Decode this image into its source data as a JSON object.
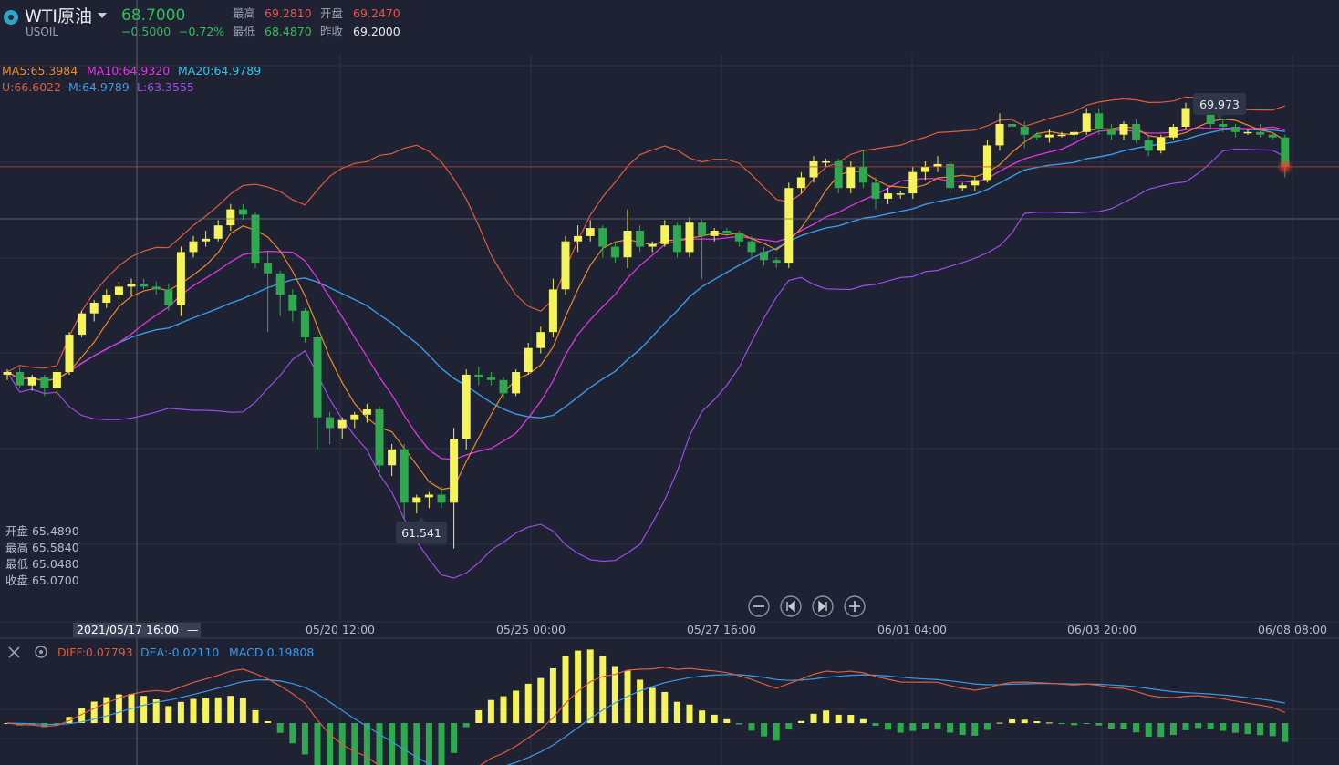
{
  "header": {
    "symbol_name": "WTI原油",
    "symbol_code": "USOIL",
    "last_price": "68.7000",
    "change": "−0.5000",
    "change_pct": "−0.72%",
    "high_label": "最高",
    "high_value": "69.2810",
    "open_label": "开盘",
    "open_value": "69.2470",
    "low_label": "最低",
    "low_value": "68.4870",
    "prev_close_label": "昨收",
    "prev_close_value": "69.2000"
  },
  "indicators": {
    "ma5": "MA5:65.3984",
    "ma10": "MA10:64.9320",
    "ma20": "MA20:64.9789",
    "boll_u": "U:66.6022",
    "boll_m": "M:64.9789",
    "boll_l": "L:63.3555"
  },
  "ohlc_panel": {
    "open": "开盘 65.4890",
    "high": "最高 65.5840",
    "low": "最低 65.0480",
    "close": "收盘 65.0700"
  },
  "crosshair_time": "2021/05/17 16:00",
  "macd_labels": {
    "diff": "DIFF:0.07793",
    "dea": "DEA:-0.02110",
    "macd": "MACD:0.19808"
  },
  "colors": {
    "up": "#f4f45a",
    "down": "#2fa84f",
    "ma5": "#f08a24",
    "ma10": "#e036e0",
    "ma20": "#3a9ae8",
    "boll_band": "#e25b3c",
    "boll_lower": "#9a4ee8",
    "diff": "#e25b3c",
    "dea": "#3a9ae8",
    "bg": "#1e2232"
  },
  "chart_data": {
    "type": "candlestick",
    "x_ticks": [
      "05/20 12:00",
      "05/25 00:00",
      "05/27 16:00",
      "06/01 04:00",
      "06/03 20:00",
      "06/08 08:00"
    ],
    "price_range": [
      60.2,
      70.8
    ],
    "annotations": {
      "max_label": "69.973",
      "min_label": "61.541",
      "max": 69.973,
      "min": 61.541
    },
    "candles": [
      [
        64.8,
        64.9,
        64.7,
        64.85
      ],
      [
        64.85,
        64.95,
        64.55,
        64.6
      ],
      [
        64.6,
        64.8,
        64.5,
        64.75
      ],
      [
        64.75,
        64.8,
        64.4,
        64.55
      ],
      [
        64.55,
        64.9,
        64.4,
        64.85
      ],
      [
        64.85,
        65.6,
        64.8,
        65.55
      ],
      [
        65.55,
        66.0,
        65.5,
        65.95
      ],
      [
        65.95,
        66.2,
        65.8,
        66.15
      ],
      [
        66.15,
        66.4,
        66.05,
        66.3
      ],
      [
        66.3,
        66.55,
        66.2,
        66.45
      ],
      [
        66.45,
        66.6,
        66.3,
        66.5
      ],
      [
        66.5,
        66.6,
        66.4,
        66.45
      ],
      [
        66.45,
        66.55,
        66.3,
        66.4
      ],
      [
        66.4,
        66.5,
        66.0,
        66.1
      ],
      [
        66.1,
        67.2,
        65.9,
        67.1
      ],
      [
        67.1,
        67.4,
        67.0,
        67.3
      ],
      [
        67.3,
        67.5,
        67.2,
        67.35
      ],
      [
        67.35,
        67.7,
        67.3,
        67.6
      ],
      [
        67.6,
        68.0,
        67.5,
        67.9
      ],
      [
        67.9,
        68.0,
        67.7,
        67.8
      ],
      [
        67.8,
        67.85,
        66.8,
        66.9
      ],
      [
        66.9,
        67.1,
        65.6,
        66.7
      ],
      [
        66.7,
        66.75,
        65.9,
        66.3
      ],
      [
        66.3,
        66.4,
        65.8,
        66.0
      ],
      [
        66.0,
        66.05,
        65.4,
        65.5
      ],
      [
        65.5,
        65.55,
        63.4,
        64.0
      ],
      [
        64.0,
        64.1,
        63.5,
        63.8
      ],
      [
        63.8,
        64.0,
        63.6,
        63.95
      ],
      [
        63.95,
        64.1,
        63.8,
        64.05
      ],
      [
        64.05,
        64.25,
        63.9,
        64.15
      ],
      [
        64.15,
        64.2,
        62.9,
        63.1
      ],
      [
        63.1,
        63.5,
        62.9,
        63.4
      ],
      [
        63.4,
        63.5,
        62.1,
        62.4
      ],
      [
        62.4,
        62.55,
        62.2,
        62.5
      ],
      [
        62.5,
        62.6,
        62.3,
        62.55
      ],
      [
        62.55,
        62.7,
        62.3,
        62.4
      ],
      [
        62.4,
        63.8,
        61.54,
        63.6
      ],
      [
        63.6,
        64.9,
        63.4,
        64.8
      ],
      [
        64.8,
        64.95,
        64.6,
        64.75
      ],
      [
        64.75,
        64.85,
        64.6,
        64.7
      ],
      [
        64.7,
        64.75,
        64.35,
        64.45
      ],
      [
        64.45,
        64.9,
        64.4,
        64.85
      ],
      [
        64.85,
        65.4,
        64.8,
        65.3
      ],
      [
        65.3,
        65.7,
        65.2,
        65.6
      ],
      [
        65.6,
        66.6,
        65.5,
        66.4
      ],
      [
        66.4,
        67.4,
        66.3,
        67.3
      ],
      [
        67.3,
        67.6,
        67.1,
        67.4
      ],
      [
        67.4,
        67.7,
        67.3,
        67.55
      ],
      [
        67.55,
        67.6,
        67.0,
        67.2
      ],
      [
        67.2,
        67.3,
        66.9,
        67.0
      ],
      [
        67.0,
        67.9,
        66.8,
        67.5
      ],
      [
        67.5,
        67.6,
        67.1,
        67.2
      ],
      [
        67.2,
        67.3,
        67.1,
        67.25
      ],
      [
        67.25,
        67.7,
        67.2,
        67.6
      ],
      [
        67.6,
        67.65,
        67.0,
        67.1
      ],
      [
        67.1,
        67.75,
        67.0,
        67.65
      ],
      [
        67.65,
        67.7,
        66.6,
        67.4
      ],
      [
        67.4,
        67.55,
        67.3,
        67.5
      ],
      [
        67.5,
        67.55,
        67.4,
        67.45
      ],
      [
        67.45,
        67.5,
        67.2,
        67.3
      ],
      [
        67.3,
        67.4,
        67.0,
        67.1
      ],
      [
        67.1,
        67.2,
        66.85,
        66.95
      ],
      [
        66.95,
        67.0,
        66.8,
        66.9
      ],
      [
        66.9,
        68.4,
        66.8,
        68.3
      ],
      [
        68.3,
        68.6,
        68.2,
        68.5
      ],
      [
        68.5,
        68.9,
        68.4,
        68.8
      ],
      [
        68.8,
        68.85,
        68.7,
        68.8
      ],
      [
        68.8,
        68.85,
        68.2,
        68.3
      ],
      [
        68.3,
        68.8,
        68.2,
        68.7
      ],
      [
        68.7,
        69.0,
        68.3,
        68.4
      ],
      [
        68.4,
        68.5,
        67.9,
        68.1
      ],
      [
        68.1,
        68.3,
        68.0,
        68.2
      ],
      [
        68.2,
        68.25,
        68.1,
        68.2
      ],
      [
        68.2,
        68.7,
        68.1,
        68.6
      ],
      [
        68.6,
        68.8,
        68.45,
        68.7
      ],
      [
        68.7,
        68.9,
        68.6,
        68.75
      ],
      [
        68.75,
        68.8,
        68.2,
        68.3
      ],
      [
        68.3,
        68.4,
        68.25,
        68.35
      ],
      [
        68.35,
        68.5,
        68.25,
        68.45
      ],
      [
        68.45,
        69.2,
        68.4,
        69.1
      ],
      [
        69.1,
        69.7,
        69.0,
        69.5
      ],
      [
        69.5,
        69.6,
        69.4,
        69.45
      ],
      [
        69.45,
        69.55,
        69.05,
        69.3
      ],
      [
        69.3,
        69.35,
        69.2,
        69.25
      ],
      [
        69.25,
        69.4,
        69.15,
        69.3
      ],
      [
        69.3,
        69.35,
        69.25,
        69.3
      ],
      [
        69.3,
        69.4,
        69.2,
        69.35
      ],
      [
        69.35,
        69.8,
        69.3,
        69.7
      ],
      [
        69.7,
        69.8,
        69.3,
        69.4
      ],
      [
        69.4,
        69.5,
        69.2,
        69.3
      ],
      [
        69.3,
        69.55,
        69.2,
        69.5
      ],
      [
        69.5,
        69.6,
        69.15,
        69.2
      ],
      [
        69.2,
        69.3,
        68.9,
        69.0
      ],
      [
        69.0,
        69.3,
        68.95,
        69.25
      ],
      [
        69.25,
        69.5,
        69.2,
        69.45
      ],
      [
        69.45,
        69.9,
        69.4,
        69.8
      ],
      [
        69.8,
        69.95,
        69.7,
        69.75
      ],
      [
        69.75,
        69.85,
        69.4,
        69.5
      ],
      [
        69.5,
        69.6,
        69.35,
        69.45
      ],
      [
        69.45,
        69.5,
        69.25,
        69.35
      ],
      [
        69.35,
        69.4,
        69.3,
        69.35
      ],
      [
        69.35,
        69.5,
        69.25,
        69.3
      ],
      [
        69.3,
        69.35,
        69.2,
        69.25
      ],
      [
        69.25,
        69.3,
        68.5,
        68.7
      ]
    ],
    "last_price_level": 68.7,
    "macd_range": [
      -0.55,
      0.85
    ]
  }
}
